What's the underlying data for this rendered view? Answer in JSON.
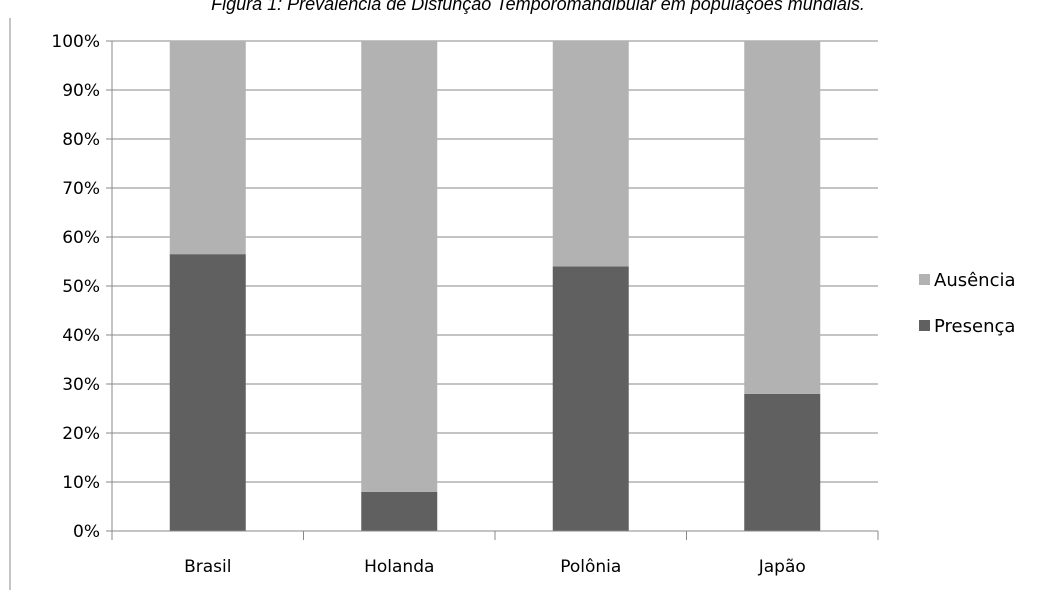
{
  "chart_data": {
    "type": "bar",
    "stacked": true,
    "percent_stacked": true,
    "title": "Figura 1: Prevalência de Disfunção Temporomandibular em populações mundiais.",
    "categories": [
      "Brasil",
      "Holanda",
      "Polônia",
      "Japão"
    ],
    "series": [
      {
        "name": "Presença",
        "values": [
          56.5,
          8,
          54,
          28
        ],
        "color": "#606060"
      },
      {
        "name": "Ausência",
        "values": [
          43.5,
          92,
          46,
          72
        ],
        "color": "#b2b2b2"
      }
    ],
    "ylim": [
      0,
      100
    ],
    "y_ticks": [
      "0%",
      "10%",
      "20%",
      "30%",
      "40%",
      "50%",
      "60%",
      "70%",
      "80%",
      "90%",
      "100%"
    ],
    "grid": true,
    "legend_position": "right",
    "legend_items": [
      {
        "name": "Ausência",
        "color": "#b2b2b2"
      },
      {
        "name": "Presença",
        "color": "#606060"
      }
    ]
  }
}
